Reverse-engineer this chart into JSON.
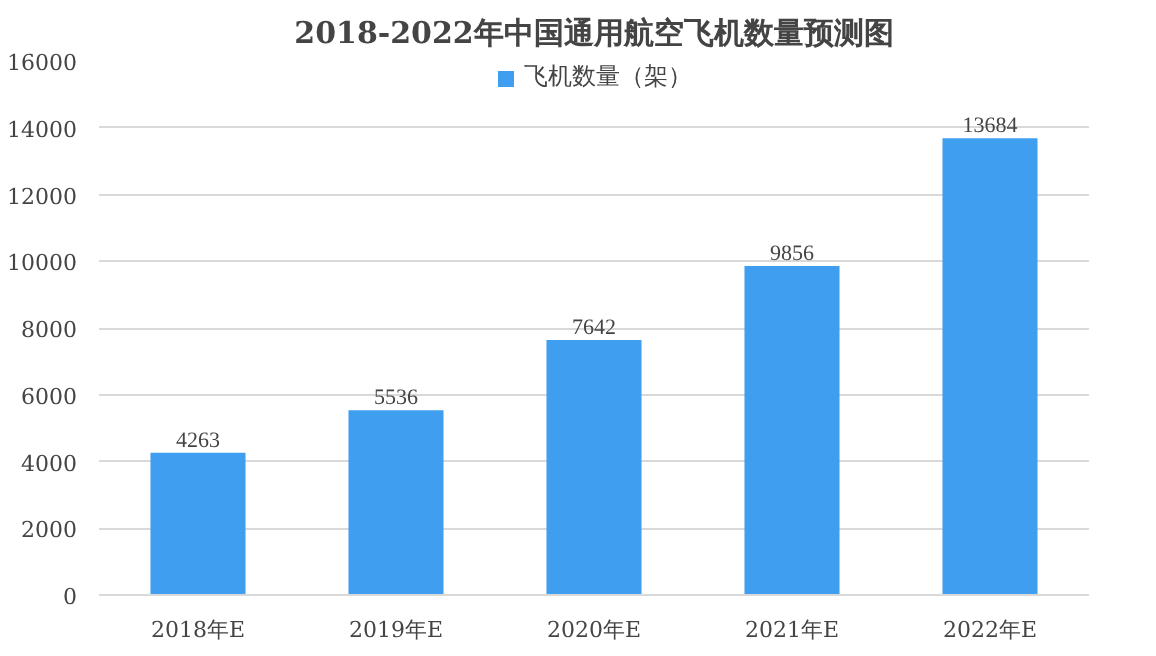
{
  "chart_data": {
    "type": "bar",
    "title": "2018-2022年中国通用航空飞机数量预测图",
    "categories": [
      "2018年E",
      "2019年E",
      "2020年E",
      "2021年E",
      "2022年E"
    ],
    "series": [
      {
        "name": "飞机数量（架）",
        "color": "#3f9ef0",
        "values": [
          4263,
          5536,
          7642,
          9856,
          13684
        ]
      }
    ],
    "ylim": [
      0,
      16000
    ],
    "yticks": [
      0,
      2000,
      4000,
      6000,
      8000,
      10000,
      12000,
      14000,
      16000
    ],
    "grid": "y",
    "legend": "top",
    "data_labels": true
  }
}
